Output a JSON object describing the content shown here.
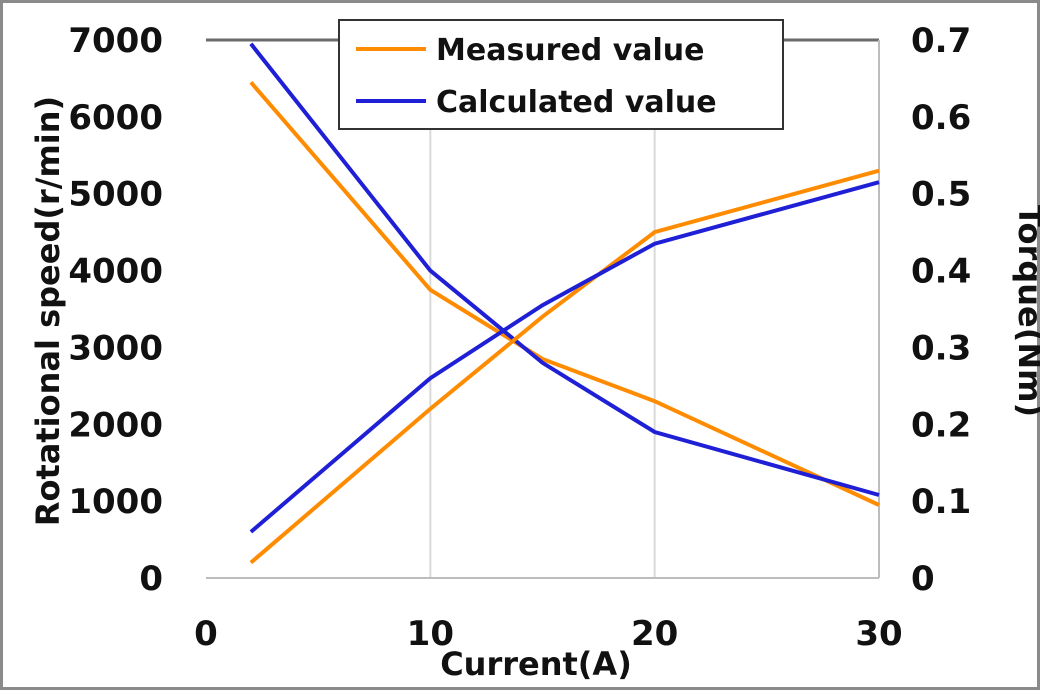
{
  "chart_data": {
    "type": "line",
    "xlabel": "Current(A)",
    "ylabel_left": "Rotational speed(r/min)",
    "ylabel_right": "Torque(Nm)",
    "xlim": [
      0,
      30
    ],
    "ylim_left": [
      0,
      7000
    ],
    "ylim_right": [
      0,
      0.7
    ],
    "x_ticks": [
      "0",
      "10",
      "20",
      "30"
    ],
    "y_left_ticks": [
      "0",
      "1000",
      "2000",
      "3000",
      "4000",
      "5000",
      "6000",
      "7000"
    ],
    "y_right_ticks": [
      "0",
      "0.1",
      "0.2",
      "0.3",
      "0.4",
      "0.5",
      "0.6",
      "0.7"
    ],
    "grid": "vertical",
    "legend_position": "top-center",
    "series": [
      {
        "name": "Measured value",
        "axis": "left",
        "quantity": "speed",
        "color": "#ff8c00",
        "x": [
          2,
          10,
          15,
          20,
          30
        ],
        "y": [
          6450,
          3750,
          2850,
          2300,
          950
        ]
      },
      {
        "name": "Calculated value",
        "axis": "left",
        "quantity": "speed",
        "color": "#1f1fd6",
        "x": [
          2,
          10,
          15,
          20,
          30
        ],
        "y": [
          6950,
          4000,
          2800,
          1900,
          1080
        ]
      },
      {
        "name": "Measured value",
        "axis": "right",
        "quantity": "torque",
        "color": "#ff8c00",
        "x": [
          2,
          10,
          15,
          20,
          30
        ],
        "y": [
          0.02,
          0.22,
          0.34,
          0.45,
          0.53
        ]
      },
      {
        "name": "Calculated value",
        "axis": "right",
        "quantity": "torque",
        "color": "#1f1fd6",
        "x": [
          2,
          10,
          15,
          20,
          30
        ],
        "y": [
          0.06,
          0.26,
          0.355,
          0.435,
          0.515
        ]
      }
    ],
    "legend": [
      {
        "label": "Measured value",
        "color": "#ff8c00"
      },
      {
        "label": "Calculated value",
        "color": "#1f1fd6"
      }
    ]
  }
}
